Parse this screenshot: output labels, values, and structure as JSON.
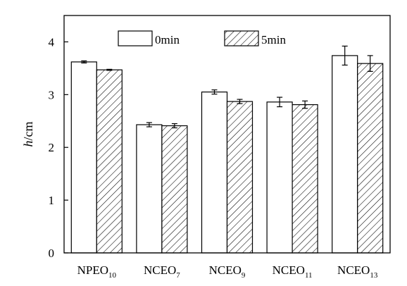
{
  "chart_data": {
    "type": "bar",
    "categories": [
      {
        "base": "NPEO",
        "sub": "10"
      },
      {
        "base": "NCEO",
        "sub": "7"
      },
      {
        "base": "NCEO",
        "sub": "9"
      },
      {
        "base": "NCEO",
        "sub": "11"
      },
      {
        "base": "NCEO",
        "sub": "13"
      }
    ],
    "series": [
      {
        "name": "0min",
        "pattern": "none",
        "values": [
          3.62,
          2.43,
          3.05,
          2.86,
          3.74
        ],
        "errors": [
          0.02,
          0.04,
          0.04,
          0.09,
          0.18
        ]
      },
      {
        "name": "5min",
        "pattern": "hatched",
        "values": [
          3.47,
          2.41,
          2.87,
          2.81,
          3.59
        ],
        "errors": [
          0.01,
          0.04,
          0.04,
          0.07,
          0.15
        ]
      }
    ],
    "ylabel": {
      "italic": "h",
      "rest": "/cm"
    },
    "ylim": [
      0,
      4.5
    ],
    "yticks": [
      "0",
      "1",
      "2",
      "3",
      "4"
    ],
    "legend_position": "top",
    "grid": false
  },
  "colors": {
    "bar_fill": "#ffffff",
    "stroke": "#000000"
  }
}
